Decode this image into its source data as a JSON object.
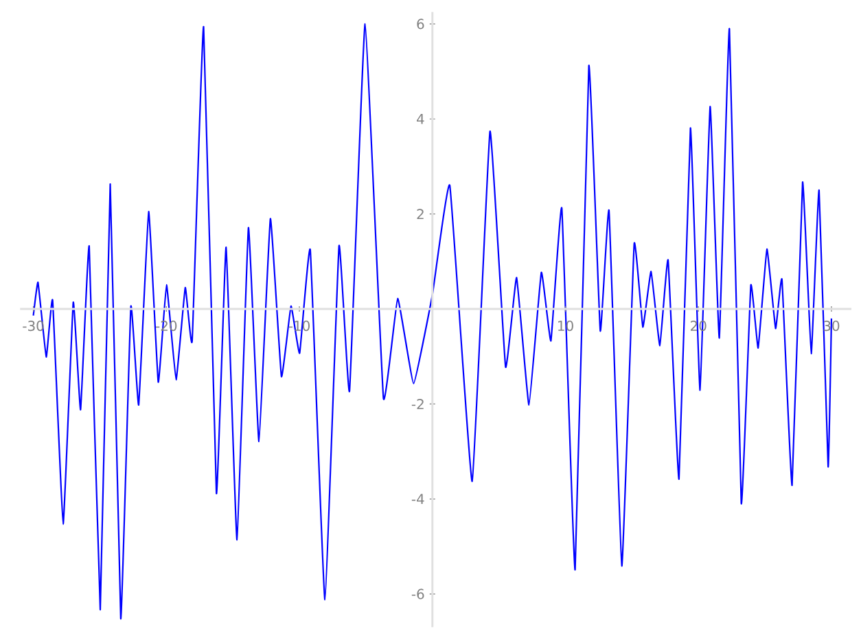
{
  "chart_data": {
    "type": "line",
    "color": "#0000ff",
    "x": [
      -30,
      -29.65,
      -29.03,
      -28.55,
      -27.76,
      -27.0,
      -26.45,
      -25.8,
      -24.97,
      -24.22,
      -23.43,
      -22.67,
      -22.08,
      -21.33,
      -20.61,
      -19.99,
      -19.27,
      -18.58,
      -18.06,
      -17.2,
      -16.24,
      -15.51,
      -14.69,
      -13.83,
      -13.04,
      -12.18,
      -11.35,
      -10.63,
      -9.98,
      -9.18,
      -8.08,
      -7.02,
      -6.23,
      -5.06,
      -3.68,
      -2.61,
      -1.41,
      0,
      1.31,
      2.99,
      4.33,
      5.5,
      6.33,
      7.26,
      8.19,
      8.91,
      9.73,
      10.73,
      11.76,
      12.62,
      13.28,
      14.24,
      15.17,
      15.82,
      16.44,
      17.1,
      17.72,
      18.54,
      19.4,
      20.12,
      20.88,
      21.57,
      22.33,
      23.22,
      23.94,
      24.49,
      25.15,
      25.8,
      26.28,
      27.04,
      27.83,
      28.48,
      29.07,
      29.75,
      30
    ],
    "values": [
      -0.14,
      0.56,
      -1.01,
      0.18,
      -4.53,
      0.14,
      -2.12,
      1.32,
      -6.33,
      2.63,
      -6.52,
      0.05,
      -2.02,
      2.05,
      -1.54,
      0.51,
      -1.49,
      0.45,
      -0.67,
      5.94,
      -3.88,
      1.3,
      -4.86,
      1.71,
      -2.79,
      1.9,
      -1.42,
      0.06,
      -0.93,
      1.24,
      -6.12,
      1.33,
      -1.73,
      6.0,
      -1.88,
      0.22,
      -1.57,
      0.3,
      2.6,
      -3.63,
      3.74,
      -1.22,
      0.66,
      -2.02,
      0.77,
      -0.67,
      2.12,
      -5.49,
      5.12,
      -0.46,
      2.07,
      -5.41,
      1.37,
      -0.38,
      0.79,
      -0.77,
      1.03,
      -3.58,
      3.81,
      -1.71,
      4.26,
      -0.61,
      5.9,
      -4.09,
      0.5,
      -0.82,
      1.26,
      -0.41,
      0.62,
      -3.71,
      2.67,
      -0.94,
      2.5,
      -3.32,
      -0.2
    ],
    "xlim": [
      -31,
      31.5
    ],
    "ylim": [
      -6.7,
      6.25
    ],
    "xticks": [
      -30,
      -20,
      -10,
      10,
      20,
      30
    ],
    "yticks": [
      -6,
      -4,
      -2,
      2,
      4,
      6
    ]
  }
}
